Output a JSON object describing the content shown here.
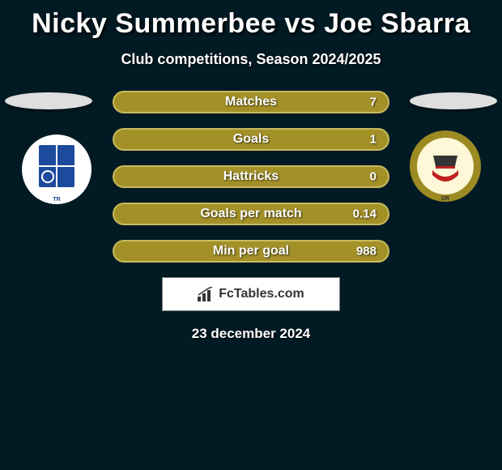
{
  "title": "Nicky Summerbee vs Joe Sbarra",
  "subtitle": "Club competitions, Season 2024/2025",
  "date": "23 december 2024",
  "colors": {
    "bar_fill": "#a39128",
    "bar_border": "#c8bb5e",
    "oval": "#dedede",
    "background": "#011a24"
  },
  "stats": [
    {
      "label": "Matches",
      "value": "7"
    },
    {
      "label": "Goals",
      "value": "1"
    },
    {
      "label": "Hattricks",
      "value": "0"
    },
    {
      "label": "Goals per match",
      "value": "0.14"
    },
    {
      "label": "Min per goal",
      "value": "988"
    }
  ],
  "left_club": {
    "name_abbrev": "TR",
    "ring_color": "#ffffff",
    "inner_color": "#1d4a9c"
  },
  "right_club": {
    "name_abbrev": "DR",
    "ring_color": "#9c8a22",
    "inner_color": "#fff8d8"
  },
  "fctables_label": "FcTables.com"
}
